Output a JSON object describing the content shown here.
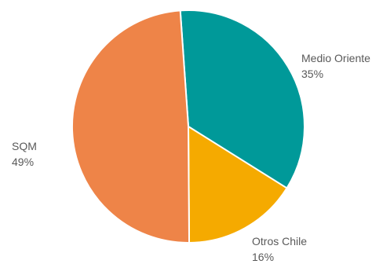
{
  "chart_data": {
    "type": "pie",
    "title": "",
    "slices": [
      {
        "label": "Medio Oriente",
        "value": 35,
        "value_label": "35%",
        "color": "#009999"
      },
      {
        "label": "Otros Chile",
        "value": 16,
        "value_label": "16%",
        "color": "#F5AA00"
      },
      {
        "label": "SQM",
        "value": 49,
        "value_label": "49%",
        "color": "#EE8448"
      }
    ],
    "legend": "none",
    "label_style": "outside, two-line name and percent",
    "slice_border_color": "#ffffff"
  }
}
